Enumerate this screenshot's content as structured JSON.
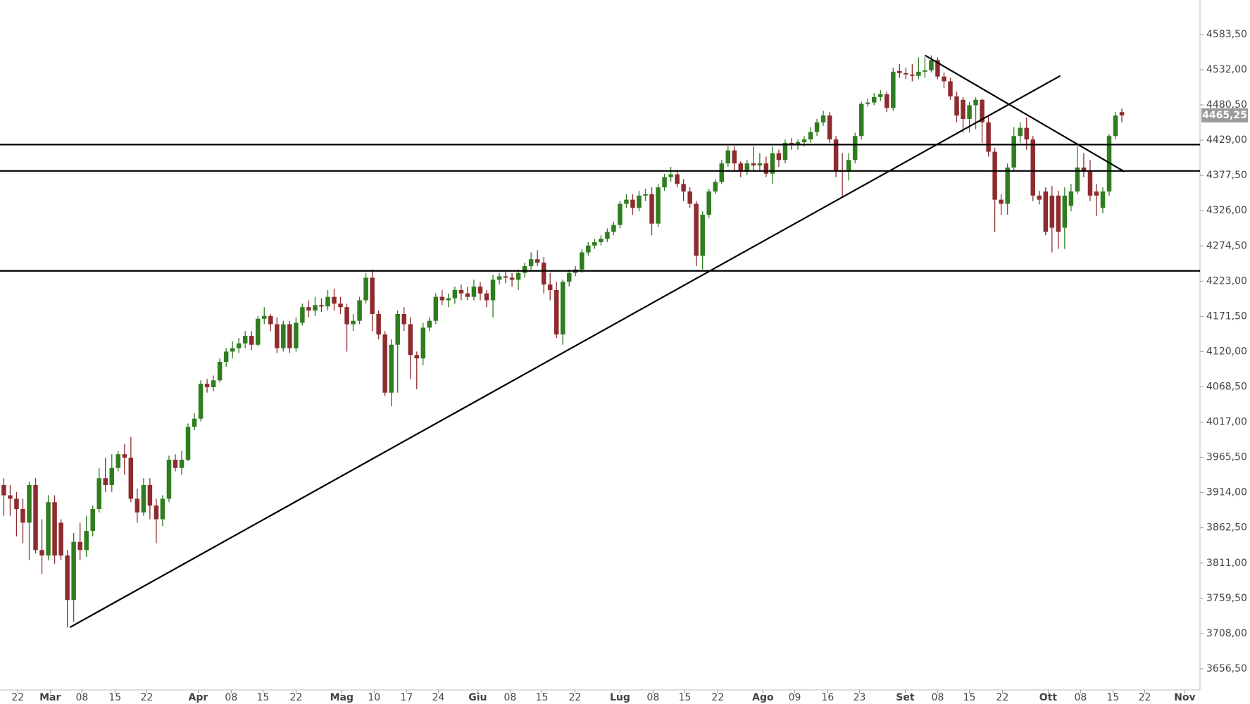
{
  "chart_data": {
    "type": "candlestick",
    "up_color": "#2f7d1f",
    "down_color": "#8e2b2e",
    "line_color": "#000000",
    "xlim": [
      -0.6,
      188.3
    ],
    "ylim": [
      3625.6,
      4633.8
    ],
    "xticks": [
      {
        "value": 2.2,
        "label": "22"
      },
      {
        "value": 7.3,
        "label": "Mar"
      },
      {
        "value": 12.3,
        "label": "08"
      },
      {
        "value": 17.5,
        "label": "15"
      },
      {
        "value": 22.5,
        "label": "22"
      },
      {
        "value": 30.6,
        "label": "Apr"
      },
      {
        "value": 35.8,
        "label": "08"
      },
      {
        "value": 40.8,
        "label": "15"
      },
      {
        "value": 46,
        "label": "22"
      },
      {
        "value": 53.2,
        "label": "Mag"
      },
      {
        "value": 58.3,
        "label": "10"
      },
      {
        "value": 63.4,
        "label": "17"
      },
      {
        "value": 68.4,
        "label": "24"
      },
      {
        "value": 74.6,
        "label": "Giu"
      },
      {
        "value": 79.7,
        "label": "08"
      },
      {
        "value": 84.7,
        "label": "15"
      },
      {
        "value": 89.9,
        "label": "22"
      },
      {
        "value": 97,
        "label": "Lug"
      },
      {
        "value": 102.2,
        "label": "08"
      },
      {
        "value": 107.2,
        "label": "15"
      },
      {
        "value": 112.4,
        "label": "22"
      },
      {
        "value": 119.5,
        "label": "Ago"
      },
      {
        "value": 124.5,
        "label": "09"
      },
      {
        "value": 129.7,
        "label": "16"
      },
      {
        "value": 134.7,
        "label": "23"
      },
      {
        "value": 141.9,
        "label": "Set"
      },
      {
        "value": 147,
        "label": "08"
      },
      {
        "value": 152,
        "label": "15"
      },
      {
        "value": 157.2,
        "label": "22"
      },
      {
        "value": 164.4,
        "label": "Ott"
      },
      {
        "value": 169.5,
        "label": "08"
      },
      {
        "value": 174.6,
        "label": "15"
      },
      {
        "value": 179.6,
        "label": "22"
      },
      {
        "value": 185.9,
        "label": "Nov"
      }
    ],
    "yticks": [
      {
        "value": 3656.5,
        "label": "3656,50"
      },
      {
        "value": 3708,
        "label": "3708,00"
      },
      {
        "value": 3759.5,
        "label": "3759,50"
      },
      {
        "value": 3811,
        "label": "3811,00"
      },
      {
        "value": 3862.5,
        "label": "3862,50"
      },
      {
        "value": 3914,
        "label": "3914,00"
      },
      {
        "value": 3965.5,
        "label": "3965,50"
      },
      {
        "value": 4017,
        "label": "4017,00"
      },
      {
        "value": 4068.5,
        "label": "4068,50"
      },
      {
        "value": 4120,
        "label": "4120,00"
      },
      {
        "value": 4171.5,
        "label": "4171,50"
      },
      {
        "value": 4223,
        "label": "4223,00"
      },
      {
        "value": 4274.5,
        "label": "4274,50"
      },
      {
        "value": 4326,
        "label": "4326,00"
      },
      {
        "value": 4377.5,
        "label": "4377,50"
      },
      {
        "value": 4429,
        "label": "4429,00"
      },
      {
        "value": 4480.5,
        "label": "4480,50"
      },
      {
        "value": 4532,
        "label": "4532,00"
      },
      {
        "value": 4583.5,
        "label": "4583,50"
      }
    ],
    "last_price": {
      "value": 4465.25,
      "label": "4465,25"
    },
    "levels": [
      4422.5,
      4384,
      4238
    ],
    "trendlines": [
      {
        "x": [
          10.4,
          166.3
        ],
        "y": [
          3717,
          4523
        ]
      },
      {
        "x": [
          145,
          176.4
        ],
        "y": [
          4553,
          4383
        ]
      }
    ],
    "open": [
      3925,
      3910,
      3905,
      3890,
      3870,
      3925,
      3830,
      3822,
      3900,
      3870,
      3822,
      3757,
      3842,
      3830,
      3858,
      3890,
      3935,
      3925,
      3950,
      3970,
      3965,
      3905,
      3885,
      3925,
      3895,
      3875,
      3905,
      3962,
      3950,
      3962,
      4010,
      4022,
      4073,
      4068,
      4078,
      4105,
      4120,
      4125,
      4132,
      4143,
      4130,
      4168,
      4172,
      4160,
      4125,
      4160,
      4125,
      4162,
      4185,
      4180,
      4188,
      4186,
      4200,
      4190,
      4185,
      4160,
      4165,
      4195,
      4228,
      4175,
      4145,
      4060,
      4130,
      4175,
      4160,
      4115,
      4110,
      4155,
      4165,
      4200,
      4195,
      4198,
      4210,
      4205,
      4200,
      4215,
      4205,
      4195,
      4225,
      4230,
      4228,
      4225,
      4235,
      4245,
      4255,
      4250,
      4218,
      4210,
      4145,
      4222,
      4235,
      4240,
      4265,
      4275,
      4280,
      4285,
      4295,
      4305,
      4336,
      4342,
      4330,
      4348,
      4350,
      4307,
      4360,
      4375,
      4379,
      4365,
      4354,
      4336,
      4260,
      4320,
      4354,
      4368,
      4395,
      4414,
      4395,
      4383,
      4395,
      4392,
      4395,
      4380,
      4410,
      4400,
      4425,
      4422,
      4426,
      4430,
      4441,
      4455,
      4465,
      4430,
      4385,
      4383,
      4400,
      4435,
      4482,
      4484,
      4492,
      4496,
      4476,
      4530,
      4527,
      4525,
      4523,
      4529,
      4531,
      4546,
      4522,
      4515,
      4493,
      4488,
      4460,
      4480,
      4488,
      4455,
      4412,
      4342,
      4336,
      4389,
      4435,
      4447,
      4430,
      4348,
      4354,
      4348,
      4348,
      4301,
      4333,
      4354,
      4389,
      4383,
      4354,
      4330,
      4354,
      4435,
      4470
    ],
    "high": [
      3935,
      3925,
      3915,
      3905,
      3930,
      3935,
      3875,
      3910,
      3910,
      3875,
      3830,
      3855,
      3870,
      3880,
      3895,
      3950,
      3965,
      3970,
      3975,
      3985,
      3995,
      3920,
      3935,
      3935,
      3905,
      3910,
      3968,
      3970,
      3975,
      4015,
      4030,
      4078,
      4080,
      4085,
      4110,
      4125,
      4135,
      4140,
      4150,
      4150,
      4172,
      4185,
      4175,
      4170,
      4165,
      4165,
      4170,
      4190,
      4195,
      4200,
      4198,
      4210,
      4212,
      4200,
      4190,
      4175,
      4200,
      4235,
      4240,
      4180,
      4150,
      4138,
      4180,
      4185,
      4170,
      4120,
      4162,
      4170,
      4205,
      4210,
      4205,
      4215,
      4218,
      4215,
      4225,
      4222,
      4210,
      4232,
      4235,
      4238,
      4235,
      4240,
      4250,
      4265,
      4268,
      4258,
      4235,
      4222,
      4225,
      4240,
      4245,
      4270,
      4280,
      4285,
      4290,
      4300,
      4310,
      4340,
      4350,
      4350,
      4355,
      4358,
      4360,
      4365,
      4380,
      4390,
      4385,
      4372,
      4360,
      4340,
      4325,
      4358,
      4372,
      4400,
      4420,
      4420,
      4398,
      4400,
      4420,
      4410,
      4405,
      4420,
      4415,
      4430,
      4432,
      4430,
      4435,
      4448,
      4460,
      4472,
      4470,
      4435,
      4410,
      4410,
      4440,
      4485,
      4490,
      4498,
      4502,
      4500,
      4535,
      4540,
      4535,
      4540,
      4550,
      4550,
      4553,
      4550,
      4528,
      4520,
      4500,
      4492,
      4485,
      4492,
      4490,
      4465,
      4418,
      4350,
      4395,
      4448,
      4455,
      4462,
      4435,
      4355,
      4360,
      4362,
      4355,
      4360,
      4365,
      4420,
      4410,
      4400,
      4365,
      4360,
      4438,
      4470,
      4475
    ],
    "low": [
      3880,
      3880,
      3850,
      3840,
      3815,
      3825,
      3795,
      3815,
      3810,
      3815,
      3717,
      3725,
      3815,
      3820,
      3850,
      3885,
      3915,
      3915,
      3945,
      3940,
      3900,
      3870,
      3880,
      3875,
      3840,
      3865,
      3900,
      3945,
      3940,
      3960,
      4005,
      4018,
      4060,
      4062,
      4075,
      4098,
      4110,
      4118,
      4125,
      4122,
      4128,
      4160,
      4150,
      4118,
      4120,
      4118,
      4120,
      4158,
      4170,
      4172,
      4178,
      4180,
      4180,
      4175,
      4120,
      4150,
      4160,
      4190,
      4150,
      4138,
      4055,
      4040,
      4060,
      4150,
      4080,
      4065,
      4100,
      4150,
      4160,
      4188,
      4185,
      4190,
      4195,
      4195,
      4195,
      4195,
      4185,
      4170,
      4218,
      4220,
      4215,
      4210,
      4228,
      4240,
      4245,
      4205,
      4195,
      4140,
      4130,
      4215,
      4230,
      4235,
      4260,
      4270,
      4275,
      4280,
      4290,
      4300,
      4330,
      4320,
      4325,
      4340,
      4290,
      4302,
      4355,
      4368,
      4360,
      4340,
      4330,
      4245,
      4240,
      4315,
      4350,
      4365,
      4390,
      4385,
      4375,
      4378,
      4385,
      4385,
      4375,
      4365,
      4390,
      4395,
      4415,
      4415,
      4420,
      4425,
      4435,
      4450,
      4425,
      4375,
      4345,
      4370,
      4395,
      4430,
      4478,
      4480,
      4486,
      4470,
      4472,
      4520,
      4518,
      4515,
      4518,
      4520,
      4528,
      4518,
      4505,
      4488,
      4455,
      4440,
      4440,
      4445,
      4425,
      4405,
      4295,
      4320,
      4320,
      4385,
      4425,
      4415,
      4340,
      4335,
      4290,
      4265,
      4270,
      4270,
      4325,
      4350,
      4375,
      4340,
      4318,
      4322,
      4348,
      4430,
      4455
    ],
    "close": [
      3910,
      3905,
      3890,
      3870,
      3925,
      3830,
      3822,
      3900,
      3822,
      3822,
      3757,
      3842,
      3830,
      3858,
      3890,
      3935,
      3925,
      3950,
      3970,
      3965,
      3905,
      3885,
      3925,
      3895,
      3875,
      3905,
      3962,
      3950,
      3962,
      4010,
      4022,
      4073,
      4068,
      4078,
      4105,
      4120,
      4125,
      4132,
      4143,
      4130,
      4168,
      4172,
      4160,
      4125,
      4160,
      4125,
      4162,
      4185,
      4180,
      4188,
      4186,
      4200,
      4190,
      4185,
      4160,
      4165,
      4195,
      4228,
      4175,
      4145,
      4060,
      4130,
      4175,
      4160,
      4115,
      4110,
      4155,
      4165,
      4200,
      4195,
      4198,
      4210,
      4205,
      4200,
      4215,
      4205,
      4195,
      4225,
      4230,
      4228,
      4225,
      4235,
      4245,
      4255,
      4250,
      4218,
      4210,
      4145,
      4222,
      4235,
      4240,
      4265,
      4275,
      4280,
      4285,
      4295,
      4305,
      4336,
      4342,
      4330,
      4348,
      4350,
      4307,
      4360,
      4375,
      4379,
      4365,
      4354,
      4336,
      4260,
      4320,
      4354,
      4368,
      4395,
      4414,
      4395,
      4383,
      4395,
      4392,
      4395,
      4380,
      4410,
      4400,
      4425,
      4422,
      4426,
      4430,
      4441,
      4455,
      4465,
      4430,
      4385,
      4383,
      4400,
      4435,
      4482,
      4484,
      4492,
      4496,
      4476,
      4529,
      4527,
      4525,
      4523,
      4529,
      4531,
      4546,
      4522,
      4515,
      4493,
      4465,
      4460,
      4480,
      4488,
      4455,
      4412,
      4342,
      4336,
      4389,
      4435,
      4447,
      4430,
      4348,
      4342,
      4295,
      4301,
      4295,
      4348,
      4354,
      4389,
      4383,
      4348,
      4348,
      4354,
      4435,
      4465,
      4465.25
    ]
  }
}
